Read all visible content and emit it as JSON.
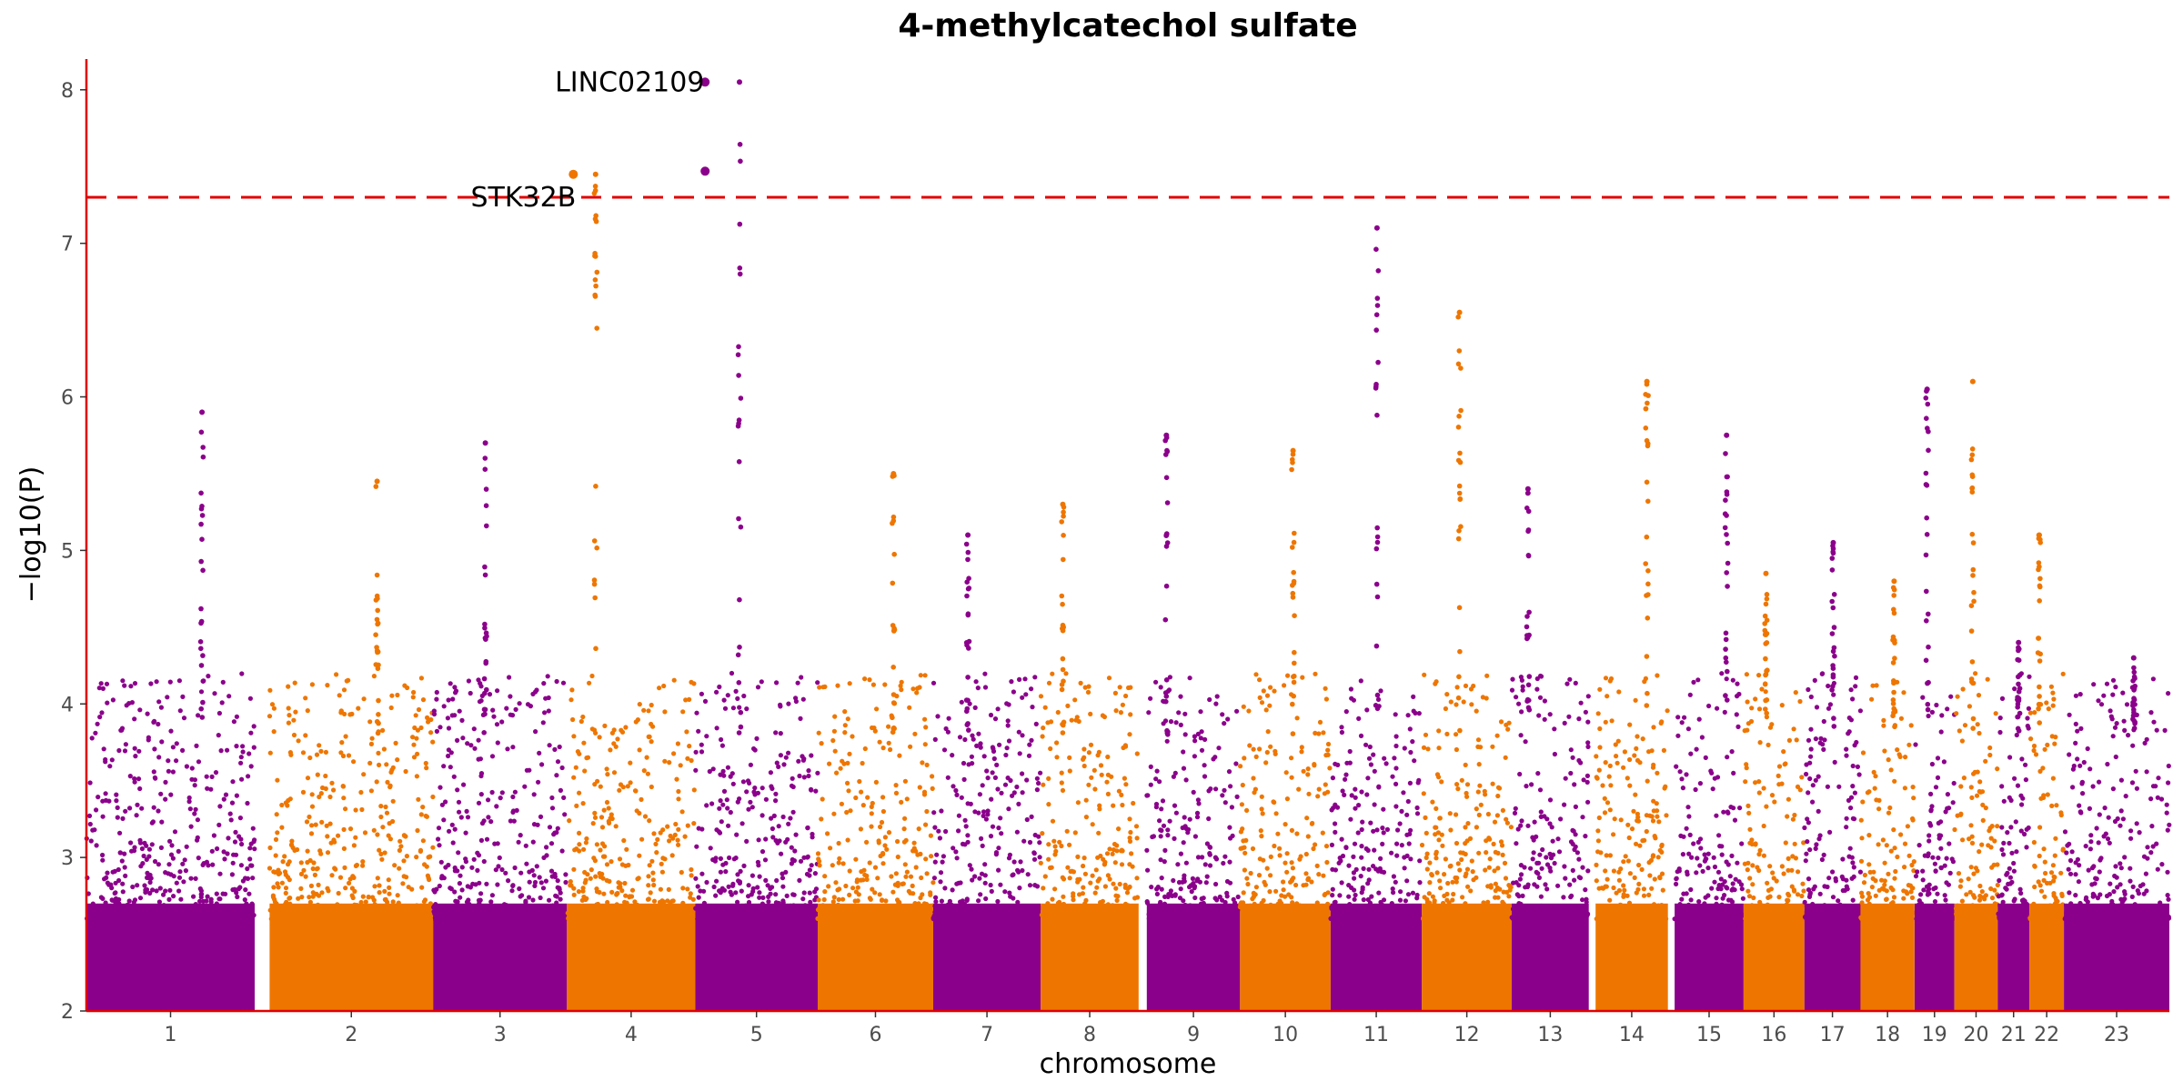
{
  "chart_data": {
    "type": "scatter",
    "subtype": "manhattan",
    "title": "4-methylcatechol sulfate",
    "xlabel": "chromosome",
    "ylabel": "−log10(P)",
    "ylim": [
      2,
      8.2
    ],
    "yticks": [
      2,
      3,
      4,
      5,
      6,
      7,
      8
    ],
    "grid": false,
    "legend": "none",
    "significance_threshold": 7.3,
    "threshold_style": "dashed",
    "colors": {
      "odd": "#8B008B",
      "even": "#EE7600",
      "axis": "#e00000",
      "threshold": "#e00000"
    },
    "chromosomes": [
      {
        "label": "1",
        "length": 2.49,
        "gap_after": 0.22,
        "max": 5.9
      },
      {
        "label": "2",
        "length": 2.42,
        "max": 5.45
      },
      {
        "label": "3",
        "length": 1.98,
        "max": 5.7
      },
      {
        "label": "4",
        "length": 1.9,
        "max": 7.45
      },
      {
        "label": "5",
        "length": 1.81,
        "max": 8.05
      },
      {
        "label": "6",
        "length": 1.71,
        "max": 5.5
      },
      {
        "label": "7",
        "length": 1.59,
        "max": 5.1
      },
      {
        "label": "8",
        "length": 1.45,
        "max": 5.3
      },
      {
        "label": "9",
        "length": 1.38,
        "gap_before": 0.12,
        "max": 5.75
      },
      {
        "label": "10",
        "length": 1.34,
        "max": 5.65
      },
      {
        "label": "11",
        "length": 1.35,
        "max": 7.1
      },
      {
        "label": "12",
        "length": 1.33,
        "max": 6.55
      },
      {
        "label": "13",
        "length": 1.14,
        "max": 5.4
      },
      {
        "label": "14",
        "length": 1.07,
        "gap_before": 0.1,
        "max": 6.1
      },
      {
        "label": "15",
        "length": 1.02,
        "gap_before": 0.1,
        "max": 5.75
      },
      {
        "label": "16",
        "length": 0.9,
        "max": 4.85
      },
      {
        "label": "17",
        "length": 0.83,
        "max": 5.05
      },
      {
        "label": "18",
        "length": 0.8,
        "max": 4.8
      },
      {
        "label": "19",
        "length": 0.59,
        "max": 6.05
      },
      {
        "label": "20",
        "length": 0.64,
        "max": 6.1
      },
      {
        "label": "21",
        "length": 0.47,
        "max": 4.4
      },
      {
        "label": "22",
        "length": 0.51,
        "max": 5.1
      },
      {
        "label": "23",
        "length": 1.56,
        "max": 4.3
      }
    ],
    "highlights": [
      {
        "chromosome": "4",
        "position": 0.05,
        "value": 7.45
      },
      {
        "chromosome": "5",
        "position": 0.08,
        "value": 8.05
      },
      {
        "chromosome": "5",
        "position": 0.08,
        "value": 7.47
      }
    ],
    "annotations": [
      {
        "label": "LINC02109",
        "chromosome": "5",
        "value": 8.05
      },
      {
        "label": "STK32B",
        "chromosome": "4",
        "value": 7.3
      }
    ]
  }
}
